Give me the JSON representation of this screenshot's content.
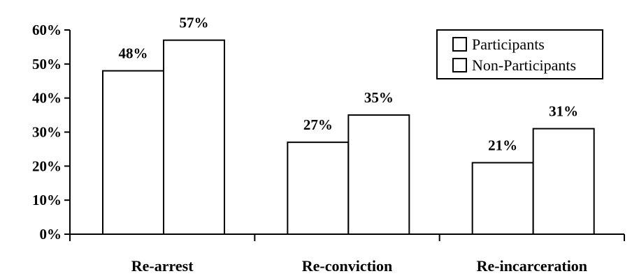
{
  "chart_data": {
    "type": "bar",
    "categories": [
      "Re-arrest",
      "Re-conviction",
      "Re-incarceration"
    ],
    "series": [
      {
        "name": "Participants",
        "values": [
          48,
          27,
          21
        ],
        "labels": [
          "48%",
          "27%",
          "21%"
        ]
      },
      {
        "name": "Non-Participants",
        "values": [
          57,
          35,
          31
        ],
        "labels": [
          "57%",
          "35%",
          "31%"
        ]
      }
    ],
    "ylim": [
      0,
      60
    ],
    "yticks": [
      0,
      10,
      20,
      30,
      40,
      50,
      60
    ],
    "ytick_labels": [
      "0%",
      "10%",
      "20%",
      "30%",
      "40%",
      "50%",
      "60%"
    ],
    "title": "",
    "xlabel": "",
    "ylabel": "",
    "grid": false,
    "legend_position": "top-right",
    "bar_fill": "#ffffff",
    "bar_stroke": "#000000"
  }
}
